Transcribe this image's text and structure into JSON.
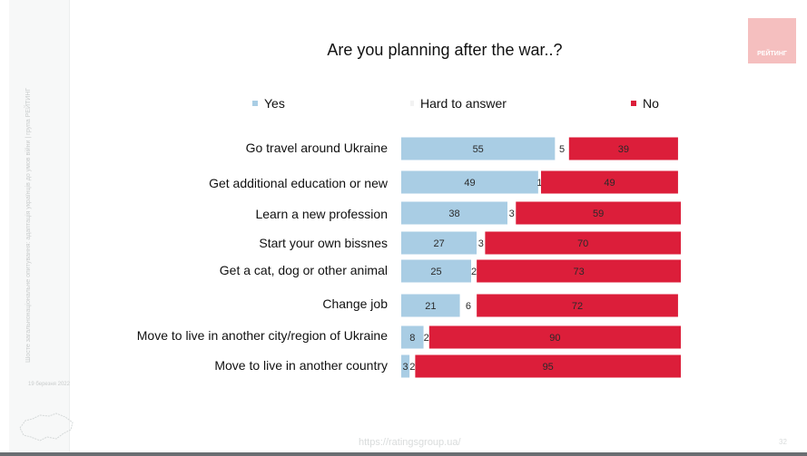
{
  "slide": {
    "title": "Are you planning after the war..?",
    "logo_text": "РЕЙТИНГ",
    "footer_url": "https://ratingsgroup.ua/",
    "page_number": "32",
    "sidebar_caption": "Шосте загальнонаціональне опитування: адаптація українців до умов війни | група РЕЙТИНГ",
    "sidebar_date": "19 березня 2022"
  },
  "colors": {
    "yes": "#a9cde4",
    "hard": "#ffffff",
    "no": "#dc1e3a",
    "logo": "#f5bfbf",
    "text": "#111111"
  },
  "chart_data": {
    "type": "bar",
    "orientation": "horizontal",
    "stacked": true,
    "title": "Are you planning after the war..?",
    "legend_position": "top",
    "unit": "%",
    "categories": [
      "Go travel around Ukraine",
      "Get additional education or new",
      "Learn a new profession",
      "Start your own bissnes",
      "Get a cat, dog or other animal",
      "Change job",
      "Move to live in another city/region of Ukraine",
      "Move to live in another country"
    ],
    "series": [
      {
        "name": "Yes",
        "color": "#a9cde4",
        "values": [
          55,
          49,
          38,
          27,
          25,
          21,
          8,
          3
        ]
      },
      {
        "name": "Hard to answer",
        "color": "#ffffff",
        "values": [
          5,
          1,
          3,
          3,
          2,
          6,
          2,
          2
        ]
      },
      {
        "name": "No",
        "color": "#dc1e3a",
        "values": [
          39,
          49,
          59,
          70,
          73,
          72,
          90,
          95
        ]
      }
    ],
    "xlim": [
      0,
      100
    ],
    "grid": false
  }
}
